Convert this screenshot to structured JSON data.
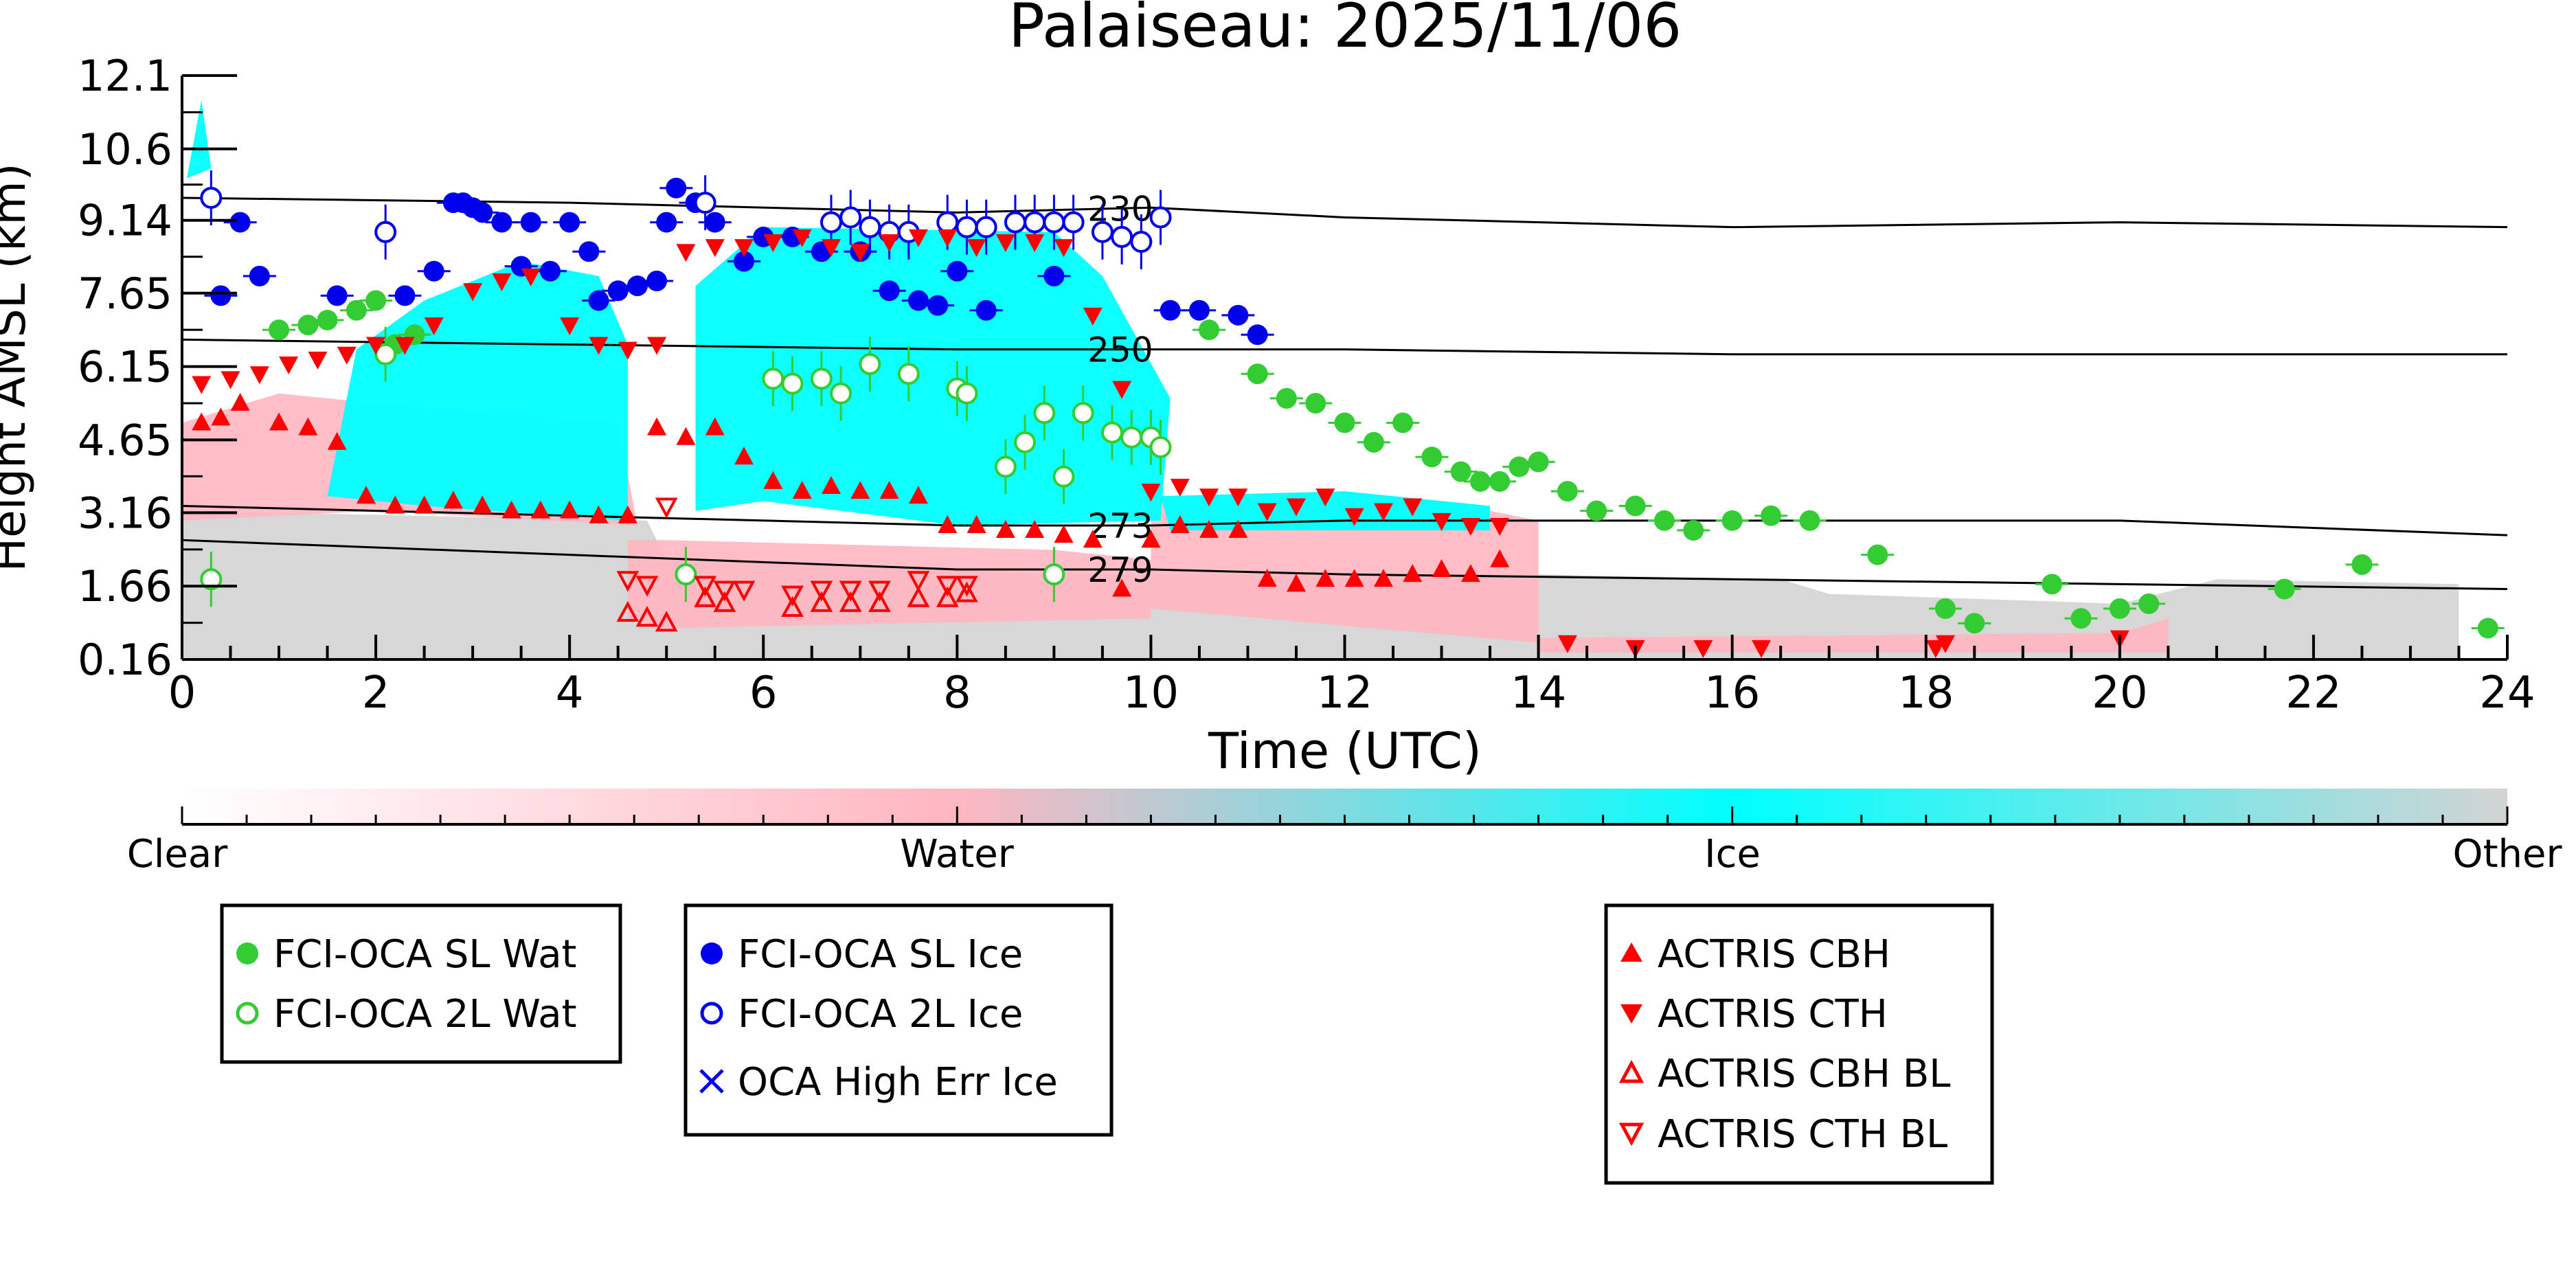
{
  "chart_data": {
    "type": "scatter",
    "title": "Palaiseau: 2025/11/06",
    "xlabel": "Time (UTC)",
    "ylabel": "Height AMSL (km)",
    "xlim": [
      0,
      24
    ],
    "ylim": [
      0.16,
      12.1
    ],
    "xticks": [
      0,
      2,
      4,
      6,
      8,
      10,
      12,
      14,
      16,
      18,
      20,
      22,
      24
    ],
    "yticks": [
      0.16,
      1.66,
      3.16,
      4.65,
      6.15,
      7.65,
      9.14,
      10.6,
      12.1
    ],
    "colorbar": {
      "labels": [
        "Clear",
        "Water",
        "Ice",
        "Other"
      ],
      "colors": [
        "#ffffff",
        "#ffb6c1",
        "#00ffff",
        "#d3d3d3"
      ]
    },
    "colors": {
      "clear": "#ffffff",
      "water": "#ffb6c1",
      "ice": "#00ffff",
      "other": "#d3d3d3",
      "oca_water": "#33cc33",
      "oca_ice": "#0000ee",
      "actris": "#ff0000"
    },
    "legend_placement": "below",
    "legend_groups": [
      [
        {
          "name": "FCI-OCA SL Wat",
          "marker": "filled-circle",
          "color": "#33cc33"
        },
        {
          "name": "FCI-OCA 2L Wat",
          "marker": "open-circle",
          "color": "#33cc33"
        }
      ],
      [
        {
          "name": "FCI-OCA SL Ice",
          "marker": "filled-circle",
          "color": "#0000ee"
        },
        {
          "name": "FCI-OCA 2L Ice",
          "marker": "open-circle",
          "color": "#0000ee"
        },
        {
          "name": "OCA High Err Ice",
          "marker": "cross",
          "color": "#0000ee"
        }
      ],
      [
        {
          "name": "ACTRIS CBH",
          "marker": "triangle-up",
          "color": "#ff0000"
        },
        {
          "name": "ACTRIS CTH",
          "marker": "triangle-down",
          "color": "#ff0000"
        },
        {
          "name": "ACTRIS CBH BL",
          "marker": "open-triangle-up",
          "color": "#ff0000"
        },
        {
          "name": "ACTRIS CTH BL",
          "marker": "open-triangle-down",
          "color": "#ff0000"
        }
      ]
    ],
    "isotherms": [
      {
        "label": "230",
        "x": [
          0,
          4,
          8,
          10,
          12,
          16,
          20,
          24
        ],
        "y": [
          9.6,
          9.5,
          9.3,
          9.4,
          9.2,
          9.0,
          9.1,
          9.0
        ]
      },
      {
        "label": "250",
        "x": [
          0,
          4,
          8,
          10,
          12,
          16,
          20,
          24
        ],
        "y": [
          6.7,
          6.6,
          6.5,
          6.5,
          6.5,
          6.4,
          6.4,
          6.4
        ]
      },
      {
        "label": "273",
        "x": [
          0,
          4,
          8,
          10,
          12,
          16,
          20,
          24
        ],
        "y": [
          3.3,
          3.1,
          2.9,
          2.9,
          3.0,
          3.0,
          3.0,
          2.7
        ]
      },
      {
        "label": "279",
        "x": [
          0,
          4,
          8,
          10,
          12,
          16,
          20,
          24
        ],
        "y": [
          2.6,
          2.3,
          2.0,
          2.0,
          1.9,
          1.8,
          1.7,
          1.6
        ]
      }
    ],
    "regions": [
      {
        "class": "other",
        "polygon": [
          [
            0,
            0.16
          ],
          [
            0,
            3.2
          ],
          [
            4.8,
            3.0
          ],
          [
            5.0,
            2.2
          ],
          [
            9,
            1.9
          ],
          [
            14,
            1.9
          ],
          [
            16.5,
            1.8
          ],
          [
            17,
            1.5
          ],
          [
            20,
            1.3
          ],
          [
            21,
            1.8
          ],
          [
            23.5,
            1.7
          ],
          [
            23.5,
            0.16
          ]
        ]
      },
      {
        "class": "water",
        "polygon": [
          [
            0,
            3.0
          ],
          [
            0,
            5.0
          ],
          [
            1,
            5.6
          ],
          [
            2,
            5.4
          ],
          [
            4.5,
            5.0
          ],
          [
            4.7,
            2.9
          ],
          [
            2,
            3.2
          ],
          [
            0,
            3.0
          ]
        ]
      },
      {
        "class": "water",
        "polygon": [
          [
            4.6,
            2.6
          ],
          [
            5,
            2.6
          ],
          [
            9,
            2.4
          ],
          [
            10,
            2.2
          ],
          [
            10,
            1.0
          ],
          [
            5,
            0.8
          ],
          [
            4.6,
            1.0
          ]
        ]
      },
      {
        "class": "water",
        "polygon": [
          [
            10,
            3.4
          ],
          [
            13,
            3.4
          ],
          [
            14,
            3.0
          ],
          [
            14,
            0.5
          ],
          [
            10,
            1.2
          ]
        ]
      },
      {
        "class": "water",
        "polygon": [
          [
            14,
            0.6
          ],
          [
            20,
            0.7
          ],
          [
            20.5,
            1.0
          ],
          [
            20.5,
            0.3
          ],
          [
            14,
            0.3
          ]
        ]
      },
      {
        "class": "ice",
        "polygon": [
          [
            1.5,
            3.5
          ],
          [
            1.8,
            6.5
          ],
          [
            2.5,
            7.5
          ],
          [
            3.5,
            8.3
          ],
          [
            4.3,
            8.0
          ],
          [
            4.6,
            6.6
          ],
          [
            4.6,
            3.0
          ],
          [
            2.5,
            3.3
          ]
        ]
      },
      {
        "class": "ice",
        "polygon": [
          [
            5.3,
            3.2
          ],
          [
            5.3,
            7.8
          ],
          [
            6,
            9.0
          ],
          [
            9,
            8.9
          ],
          [
            9.5,
            8.0
          ],
          [
            10.2,
            5.5
          ],
          [
            10.1,
            3.0
          ],
          [
            8,
            2.9
          ],
          [
            6,
            3.4
          ]
        ]
      },
      {
        "class": "ice",
        "polygon": [
          [
            10.1,
            3.5
          ],
          [
            10.2,
            2.8
          ],
          [
            13.5,
            2.8
          ],
          [
            13.5,
            3.3
          ],
          [
            12,
            3.6
          ]
        ]
      },
      {
        "class": "ice",
        "polygon": [
          [
            0.05,
            10.0
          ],
          [
            0.2,
            11.6
          ],
          [
            0.3,
            10.2
          ]
        ]
      }
    ],
    "series": [
      {
        "name": "FCI-OCA SL Wat",
        "marker": "filled-circle",
        "color": "#33cc33",
        "x": [
          1.0,
          1.3,
          1.5,
          1.8,
          2.0,
          2.2,
          2.4,
          10.6,
          11.1,
          11.4,
          11.7,
          12.0,
          12.3,
          12.6,
          12.9,
          13.2,
          13.4,
          13.6,
          13.8,
          14.0,
          14.3,
          14.6,
          15.0,
          15.3,
          15.6,
          16.0,
          16.4,
          16.8,
          17.5,
          18.2,
          18.5,
          19.3,
          19.6,
          20.0,
          20.3,
          21.7,
          22.5,
          23.8
        ],
        "y": [
          6.9,
          7.0,
          7.1,
          7.3,
          7.5,
          6.6,
          6.8,
          6.9,
          6.0,
          5.5,
          5.4,
          5.0,
          4.6,
          5.0,
          4.3,
          4.0,
          3.8,
          3.8,
          4.1,
          4.2,
          3.6,
          3.2,
          3.3,
          3.0,
          2.8,
          3.0,
          3.1,
          3.0,
          2.3,
          1.2,
          0.9,
          1.7,
          1.0,
          1.2,
          1.3,
          1.6,
          2.1,
          0.8
        ]
      },
      {
        "name": "FCI-OCA 2L Wat",
        "marker": "open-circle",
        "color": "#33cc33",
        "x": [
          0.3,
          2.1,
          5.2,
          6.1,
          6.3,
          6.6,
          6.8,
          7.1,
          7.5,
          8.0,
          8.1,
          8.5,
          8.7,
          8.9,
          9.0,
          9.1,
          9.3,
          9.6,
          9.8,
          10.0,
          10.1
        ],
        "y": [
          1.8,
          6.4,
          1.9,
          5.9,
          5.8,
          5.9,
          5.6,
          6.2,
          6.0,
          5.7,
          5.6,
          4.1,
          4.6,
          5.2,
          1.9,
          3.9,
          5.2,
          4.8,
          4.7,
          4.7,
          4.5
        ]
      },
      {
        "name": "FCI-OCA SL Ice",
        "marker": "filled-circle",
        "color": "#0000ee",
        "x": [
          0.4,
          0.6,
          0.8,
          1.6,
          2.3,
          2.6,
          2.8,
          2.9,
          3.0,
          3.1,
          3.3,
          3.5,
          3.6,
          3.8,
          4.0,
          4.2,
          4.3,
          4.5,
          4.7,
          4.9,
          5.0,
          5.1,
          5.3,
          5.5,
          5.8,
          6.0,
          6.3,
          6.6,
          7.0,
          7.3,
          7.6,
          7.8,
          8.0,
          8.3,
          9.0,
          10.2,
          10.5,
          10.9,
          11.1
        ],
        "y": [
          7.6,
          9.1,
          8.0,
          7.6,
          7.6,
          8.1,
          9.5,
          9.5,
          9.4,
          9.3,
          9.1,
          8.2,
          9.1,
          8.1,
          9.1,
          8.5,
          7.5,
          7.7,
          7.8,
          7.9,
          9.1,
          9.8,
          9.5,
          9.1,
          8.3,
          8.8,
          8.8,
          8.5,
          8.5,
          7.7,
          7.5,
          7.4,
          8.1,
          7.3,
          8.0,
          7.3,
          7.3,
          7.2,
          6.8
        ]
      },
      {
        "name": "FCI-OCA 2L Ice",
        "marker": "open-circle",
        "color": "#0000ee",
        "x": [
          0.3,
          2.1,
          5.4,
          6.7,
          6.9,
          7.1,
          7.3,
          7.5,
          7.9,
          8.1,
          8.3,
          8.6,
          8.8,
          9.0,
          9.2,
          9.5,
          9.7,
          9.9,
          10.1
        ],
        "y": [
          9.6,
          8.9,
          9.5,
          9.1,
          9.2,
          9.0,
          8.9,
          8.9,
          9.1,
          9.0,
          9.0,
          9.1,
          9.1,
          9.1,
          9.1,
          8.9,
          8.8,
          8.7,
          9.2
        ]
      },
      {
        "name": "ACTRIS CBH",
        "marker": "triangle-up",
        "color": "#ff0000",
        "x": [
          0.2,
          0.4,
          0.6,
          1.0,
          1.3,
          1.6,
          1.9,
          2.2,
          2.5,
          2.8,
          3.1,
          3.4,
          3.7,
          4.0,
          4.3,
          4.6,
          4.9,
          5.2,
          5.5,
          5.8,
          6.1,
          6.4,
          6.7,
          7.0,
          7.3,
          7.6,
          7.9,
          8.2,
          8.5,
          8.8,
          9.1,
          9.4,
          9.7,
          10.0,
          10.3,
          10.6,
          10.9,
          11.2,
          11.5,
          11.8,
          12.1,
          12.4,
          12.7,
          13.0,
          13.3,
          13.6
        ],
        "y": [
          5.0,
          5.1,
          5.4,
          5.0,
          4.9,
          4.6,
          3.5,
          3.3,
          3.3,
          3.4,
          3.3,
          3.2,
          3.2,
          3.2,
          3.1,
          3.1,
          4.9,
          4.7,
          4.9,
          4.3,
          3.8,
          3.6,
          3.7,
          3.6,
          3.6,
          3.5,
          2.9,
          2.9,
          2.8,
          2.8,
          2.7,
          2.6,
          1.6,
          2.6,
          2.9,
          2.8,
          2.8,
          1.8,
          1.7,
          1.8,
          1.8,
          1.8,
          1.9,
          2.0,
          1.9,
          2.2
        ]
      },
      {
        "name": "ACTRIS CTH",
        "marker": "triangle-down",
        "color": "#ff0000",
        "x": [
          0.2,
          0.5,
          0.8,
          1.1,
          1.4,
          1.7,
          2.0,
          2.3,
          2.6,
          3.0,
          3.3,
          3.6,
          4.0,
          4.3,
          4.6,
          4.9,
          5.2,
          5.5,
          5.8,
          6.1,
          6.4,
          6.7,
          7.0,
          7.3,
          7.6,
          7.9,
          8.2,
          8.5,
          8.8,
          9.1,
          9.4,
          9.7,
          10.0,
          10.3,
          10.6,
          10.9,
          11.2,
          11.5,
          11.8,
          12.1,
          12.4,
          12.7,
          13.0,
          13.3,
          13.6,
          14.3,
          15.0,
          15.7,
          16.3,
          18.1,
          18.2,
          20.0
        ],
        "y": [
          5.8,
          5.9,
          6.0,
          6.2,
          6.3,
          6.4,
          6.6,
          6.6,
          7.0,
          7.7,
          7.9,
          8.0,
          7.0,
          6.6,
          6.5,
          6.6,
          8.5,
          8.6,
          8.6,
          8.7,
          8.8,
          8.6,
          8.5,
          8.7,
          8.8,
          8.8,
          8.6,
          8.7,
          8.7,
          8.6,
          7.2,
          5.7,
          3.6,
          3.7,
          3.5,
          3.5,
          3.2,
          3.3,
          3.5,
          3.1,
          3.2,
          3.3,
          3.0,
          2.9,
          2.9,
          0.5,
          0.4,
          0.4,
          0.4,
          0.4,
          0.5,
          0.6
        ]
      },
      {
        "name": "ACTRIS CBH BL",
        "marker": "open-triangle-up",
        "color": "#ff0000",
        "x": [
          4.6,
          4.8,
          5.0,
          5.4,
          5.6,
          6.3,
          6.6,
          6.9,
          7.2,
          7.6,
          7.9,
          8.1
        ],
        "y": [
          1.1,
          1.0,
          0.9,
          1.4,
          1.3,
          1.2,
          1.3,
          1.3,
          1.3,
          1.4,
          1.4,
          1.5
        ]
      },
      {
        "name": "ACTRIS CTH BL",
        "marker": "open-triangle-down",
        "color": "#ff0000",
        "x": [
          4.6,
          4.8,
          5.0,
          5.4,
          5.6,
          5.8,
          6.3,
          6.6,
          6.9,
          7.2,
          7.6,
          7.9,
          8.1
        ],
        "y": [
          1.8,
          1.7,
          3.3,
          1.7,
          1.6,
          1.6,
          1.5,
          1.6,
          1.6,
          1.6,
          1.8,
          1.7,
          1.7
        ]
      }
    ]
  }
}
